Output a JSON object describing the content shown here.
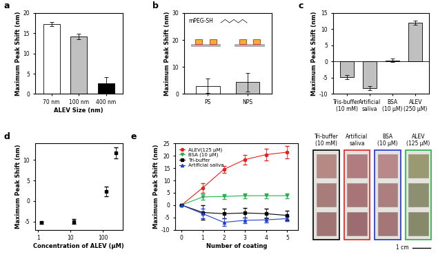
{
  "chart_data": [
    {
      "type": "bar",
      "panel": "a",
      "categories": [
        "70 nm",
        "100 nm",
        "400 nm"
      ],
      "values": [
        17.3,
        14.2,
        2.6
      ],
      "errors": [
        0.5,
        0.6,
        1.5
      ],
      "colors": [
        "#ffffff",
        "#c0c0c0",
        "#000000"
      ],
      "xlabel": "ALEV Size (nm)",
      "ylabel": "Maximum Peak Shift (nm)",
      "ylim": [
        0,
        20
      ],
      "yticks": [
        0,
        5,
        10,
        15,
        20
      ]
    },
    {
      "type": "bar",
      "panel": "b",
      "annotation": "mPEG-SH",
      "categories": [
        "PS",
        "NPS"
      ],
      "values": [
        3.0,
        4.4
      ],
      "errors": [
        2.7,
        3.5
      ],
      "colors": [
        "#ffffff",
        "#c0c0c0"
      ],
      "ylabel": "Maximum Peak Shift (nm)",
      "ylim": [
        0,
        30
      ],
      "yticks": [
        0,
        10,
        20,
        30
      ]
    },
    {
      "type": "bar",
      "panel": "c",
      "categories": [
        "Tris-buffer\n(10 mM)",
        "Artificial\nsaliva",
        "BSA\n(10 μM)",
        "ALEV\n(250 μM)"
      ],
      "values": [
        -4.8,
        -8.2,
        0.4,
        12.0
      ],
      "errors": [
        0.6,
        0.6,
        0.6,
        0.6
      ],
      "colors": [
        "#c0c0c0",
        "#c0c0c0",
        "#c0c0c0",
        "#c0c0c0"
      ],
      "ylabel": "Maximum Peak Shift (nm)",
      "ylim": [
        -10,
        15
      ],
      "yticks": [
        -10,
        -5,
        0,
        5,
        10,
        15
      ]
    },
    {
      "type": "scatter",
      "panel": "d",
      "log": "x",
      "x": [
        1.25,
        12.5,
        125,
        250
      ],
      "values": [
        -5.3,
        -5.0,
        2.3,
        11.7
      ],
      "errors": [
        0.3,
        0.6,
        1.2,
        1.3
      ],
      "color": "#000000",
      "marker": "square",
      "xlabel": "Concentration of ALEV (μM)",
      "ylabel": "Maximum Peak Shift (nm)",
      "xlim": [
        0.8,
        400
      ],
      "xticks": [
        1,
        10,
        100
      ],
      "ylim": [
        -7,
        14
      ],
      "yticks": [
        -5,
        0,
        5,
        10
      ]
    },
    {
      "type": "line",
      "panel": "e",
      "legend": "upper left",
      "x": [
        0,
        1,
        2,
        3,
        4,
        5
      ],
      "series": [
        {
          "name": "ALEV(125 μM)",
          "color": "#e8201c",
          "marker": "circle",
          "values": [
            0,
            7.0,
            14.5,
            18.5,
            20.5,
            21.5
          ],
          "errors": [
            0,
            2.0,
            1.5,
            2.0,
            2.5,
            2.5
          ]
        },
        {
          "name": "BSA (10 μM)",
          "color": "#22b14c",
          "marker": "triangle_down",
          "values": [
            0,
            3.3,
            3.5,
            3.8,
            3.8,
            3.8
          ],
          "errors": [
            0,
            1.0,
            1.0,
            1.0,
            1.0,
            1.0
          ]
        },
        {
          "name": "Tri-buffer",
          "color": "#000000",
          "marker": "square",
          "values": [
            0,
            -3.0,
            -3.5,
            -3.2,
            -3.5,
            -4.2
          ],
          "errors": [
            0,
            3.0,
            2.0,
            2.0,
            2.0,
            2.0
          ]
        },
        {
          "name": "Artificial saliva",
          "color": "#1f3fd0",
          "marker": "triangle_up",
          "values": [
            0,
            -3.5,
            -7.0,
            -6.2,
            -6.0,
            -5.5
          ],
          "errors": [
            0,
            2.0,
            1.5,
            1.0,
            1.0,
            1.0
          ]
        }
      ],
      "xlabel": "Number of coating",
      "ylabel": "Maximum Peak Shift (nm)",
      "xlim": [
        -0.3,
        5.5
      ],
      "xticks": [
        0,
        1,
        2,
        3,
        4,
        5
      ],
      "ylim": [
        -10,
        25
      ],
      "yticks": [
        -10,
        -5,
        0,
        5,
        10,
        15,
        20,
        25
      ]
    }
  ],
  "image": {
    "labels": [
      "Tri-buffer\n(10 mM)",
      "Artificial\nsaliva",
      "BSA\n(10 μM)",
      "ALEV\n(125 μM)"
    ],
    "scale_bar": "1 cm"
  }
}
